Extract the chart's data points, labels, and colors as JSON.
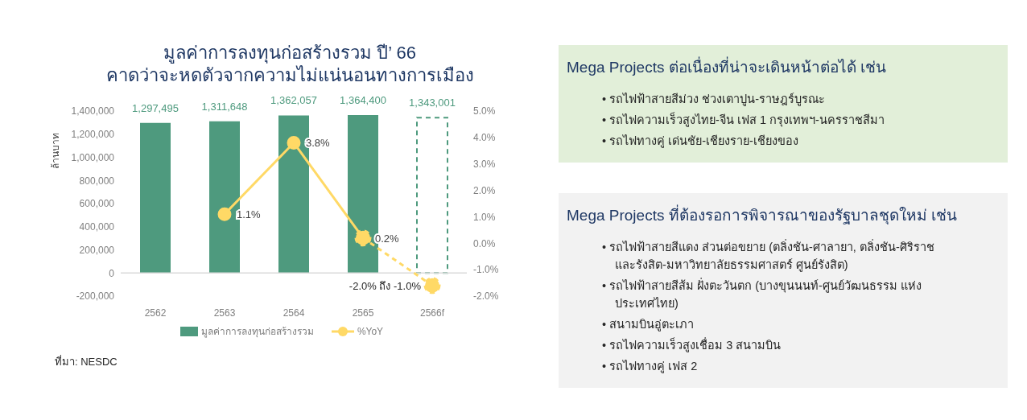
{
  "chart_data": [
    {
      "type": "bar",
      "title": "มูลค่าการลงทุนก่อสร้างรวม ปี’ 66\nคาดว่าจะหดตัวจากความไม่แน่นอนทางการเมือง",
      "ylabel": "ล้านบาท",
      "categories": [
        "2562",
        "2563",
        "2564",
        "2565",
        "2566f"
      ],
      "stacked": true,
      "series": [
        {
          "name": "มูลค่าการลงทุนก่อสร้างรวม",
          "color": "#4e9a7e",
          "values": [
            1297495,
            1311648,
            1362057,
            1364400,
            null
          ],
          "value_labels": [
            "1,297,495",
            "1,311,648",
            "1,362,057",
            "1,364,400",
            null
          ]
        },
        {
          "color": "#4e9a7e",
          "line_style": "dashed",
          "values": [
            null,
            null,
            null,
            null,
            1343001
          ],
          "value_labels": [
            null,
            null,
            null,
            null,
            "1,343,001"
          ]
        },
        {
          "type": "line",
          "axis": "y2",
          "name": "%YoY",
          "color": "#ffd966",
          "values": [
            null,
            1.1,
            3.8,
            0.2,
            null
          ],
          "value_labels": [
            null,
            "1.1%",
            "3.8%",
            "0.2%",
            null
          ]
        },
        {
          "type": "line",
          "axis": "y2",
          "color": "#ffd966",
          "line_style": "dashed",
          "values": [
            null,
            null,
            null,
            0.2,
            -1.6
          ]
        }
      ],
      "ylim": [
        -200000,
        1400000
      ],
      "yticks": [
        {
          "value": -200000,
          "label": "-200,000"
        },
        {
          "value": 0,
          "label": "0"
        },
        {
          "value": 200000,
          "label": "200,000"
        },
        {
          "value": 400000,
          "label": "400,000"
        },
        {
          "value": 600000,
          "label": "600,000"
        },
        {
          "value": 800000,
          "label": "800,000"
        },
        {
          "value": 1000000,
          "label": "1,000,000"
        },
        {
          "value": 1200000,
          "label": "1,200,000"
        },
        {
          "value": 1400000,
          "label": "1,400,000"
        }
      ],
      "y2lim": [
        -2,
        5
      ],
      "y2ticks": [
        {
          "value": -2,
          "label": "-2.0%"
        },
        {
          "value": -1,
          "label": "-1.0%"
        },
        {
          "value": 0,
          "label": "0.0%"
        },
        {
          "value": 1,
          "label": "1.0%"
        },
        {
          "value": 2,
          "label": "2.0%"
        },
        {
          "value": 3,
          "label": "3.0%"
        },
        {
          "value": 4,
          "label": "4.0%"
        },
        {
          "value": 5,
          "label": "5.0%"
        }
      ],
      "ref_lines": [
        {
          "axis": "y",
          "value": 0,
          "color": "#d9d9d9"
        }
      ],
      "marker": "circle",
      "grid": false,
      "legend": "bottom",
      "annotations": [
        {
          "text": "-2.0% ถึง -1.0%",
          "x": "2566f",
          "y": -1.6
        },
        "ที่มา:  NESDC"
      ]
    },
    {
      "type": "other",
      "title": "Mega Projects ต่อเนื่องที่น่าจะเดินหน้าต่อได้ เช่น",
      "annotations": [
        "•  รถไฟฟ้าสายสีม่วง ช่วงเตาปูน-ราษฎร์บูรณะ",
        "•  รถไฟความเร็วสูงไทย-จีน เฟส 1 กรุงเทพฯ-นครราชสีมา",
        "•  รถไฟทางคู่ เด่นชัย-เชียงราย-เชียงของ"
      ]
    },
    {
      "type": "other",
      "title": "Mega Projects ที่ต้องรอการพิจารณาของรัฐบาลชุดใหม่ เช่น",
      "annotations": [
        "•  รถไฟฟ้าสายสีแดง ส่วนต่อขยาย (ตลิ่งชัน-ศาลายา, ตลิ่งชัน-ศิริราช และรังสิต-มหาวิทยาลัยธรรมศาสตร์ ศูนย์รังสิต)",
        "•  รถไฟฟ้าสายสีส้ม ฝั่งตะวันตก (บางขุนนนท์-ศูนย์วัฒนธรรม แห่งประเทศไทย)",
        "•  สนามบินอู่ตะเภา",
        "•  รถไฟความเร็วสูงเชื่อม 3 สนามบิน",
        "•  รถไฟทางคู่ เฟส 2"
      ]
    }
  ]
}
